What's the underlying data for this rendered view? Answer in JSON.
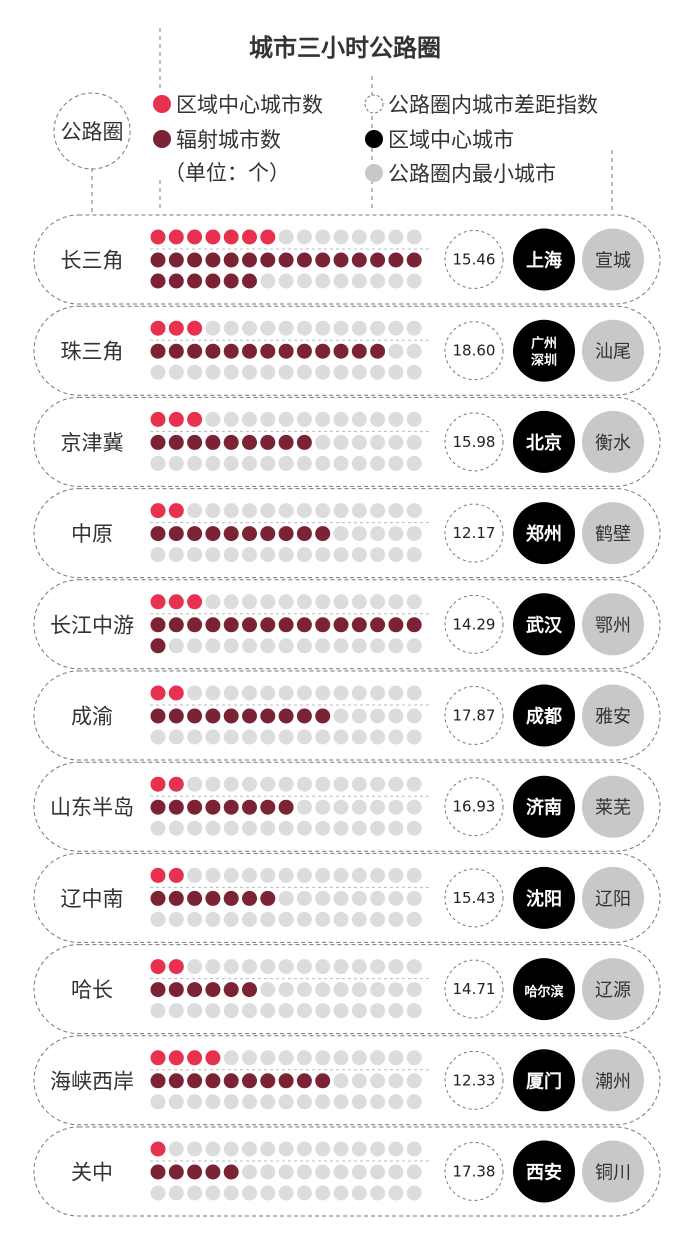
{
  "colors": {
    "regional_center_dot": "#e8304f",
    "radiation_dot": "#7b2335",
    "empty_dot": "#dcdcdc",
    "center_city_circle": "#000000",
    "smallest_city_circle": "#c8c8c8",
    "text": "#333333",
    "dashed_line": "#777777"
  },
  "chart_data": {
    "type": "dot-matrix",
    "title": "城市三小时公路圈",
    "legend": {
      "regional_center_count": "区域中心城市数",
      "radiation_count": "辐射城市数",
      "unit": "（单位：个）",
      "gap_index": "公路圈内城市差距指数",
      "center_city": "区域中心城市",
      "smallest_city": "公路圈内最小城市"
    },
    "dots_per_row": 15,
    "groups": [
      {
        "name": "长三角",
        "center_count": 7,
        "radiation_count": 21,
        "gap_index": "15.46",
        "center_city": [
          "上海"
        ],
        "smallest_city": "宣城"
      },
      {
        "name": "珠三角",
        "center_count": 3,
        "radiation_count": 13,
        "gap_index": "18.60",
        "center_city": [
          "广州",
          "深圳"
        ],
        "smallest_city": "汕尾"
      },
      {
        "name": "京津冀",
        "center_count": 3,
        "radiation_count": 9,
        "gap_index": "15.98",
        "center_city": [
          "北京"
        ],
        "smallest_city": "衡水"
      },
      {
        "name": "中原",
        "center_count": 2,
        "radiation_count": 10,
        "gap_index": "12.17",
        "center_city": [
          "郑州"
        ],
        "smallest_city": "鹤壁"
      },
      {
        "name": "长江中游",
        "center_count": 3,
        "radiation_count": 16,
        "gap_index": "14.29",
        "center_city": [
          "武汉"
        ],
        "smallest_city": "鄂州"
      },
      {
        "name": "成渝",
        "center_count": 2,
        "radiation_count": 10,
        "gap_index": "17.87",
        "center_city": [
          "成都"
        ],
        "smallest_city": "雅安"
      },
      {
        "name": "山东半岛",
        "center_count": 2,
        "radiation_count": 8,
        "gap_index": "16.93",
        "center_city": [
          "济南"
        ],
        "smallest_city": "莱芜"
      },
      {
        "name": "辽中南",
        "center_count": 2,
        "radiation_count": 7,
        "gap_index": "15.43",
        "center_city": [
          "沈阳"
        ],
        "smallest_city": "辽阳"
      },
      {
        "name": "哈长",
        "center_count": 2,
        "radiation_count": 6,
        "gap_index": "14.71",
        "center_city": [
          "哈尔滨"
        ],
        "smallest_city": "辽源"
      },
      {
        "name": "海峡西岸",
        "center_count": 4,
        "radiation_count": 10,
        "gap_index": "12.33",
        "center_city": [
          "厦门"
        ],
        "smallest_city": "潮州"
      },
      {
        "name": "关中",
        "center_count": 1,
        "radiation_count": 5,
        "gap_index": "17.38",
        "center_city": [
          "西安"
        ],
        "smallest_city": "铜川"
      }
    ]
  }
}
